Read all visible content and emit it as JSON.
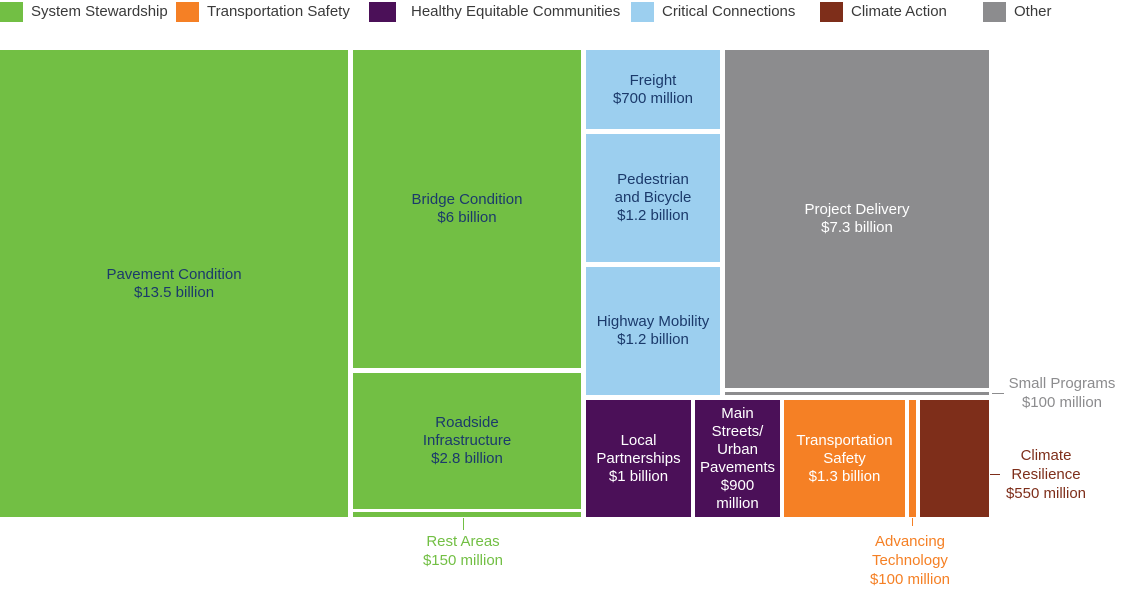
{
  "legend": {
    "items": [
      {
        "label": "System Stewardship",
        "color": "#72bf44"
      },
      {
        "label": "Transportation Safety",
        "color": "#f58025"
      },
      {
        "label": "Healthy Equitable Communities",
        "color": "#4b1058"
      },
      {
        "label": "Critical Connections",
        "color": "#9ccfef"
      },
      {
        "label": "Climate Action",
        "color": "#7e2e1a"
      },
      {
        "label": "Other",
        "color": "#8c8c8e"
      }
    ]
  },
  "chart_data": {
    "type": "treemap",
    "unit": "USD",
    "groups": [
      {
        "name": "System Stewardship",
        "color": "#72bf44",
        "text_color": "#1b3a6b",
        "ext_color": "#72bf44",
        "items": [
          {
            "name": "Pavement Condition",
            "value_label": "$13.5 billion",
            "value": 13500000000
          },
          {
            "name": "Bridge Condition",
            "value_label": "$6 billion",
            "value": 6000000000
          },
          {
            "name": "Roadside Infrastructure",
            "value_label": "$2.8 billion",
            "value": 2800000000
          },
          {
            "name": "Rest Areas",
            "value_label": "$150 million",
            "value": 150000000
          }
        ]
      },
      {
        "name": "Critical Connections",
        "color": "#9ccfef",
        "text_color": "#1b3a6b",
        "ext_color": "#9ccfef",
        "items": [
          {
            "name": "Freight",
            "value_label": "$700 million",
            "value": 700000000
          },
          {
            "name": "Pedestrian and Bicycle",
            "value_label": "$1.2 billion",
            "value": 1200000000
          },
          {
            "name": "Highway Mobility",
            "value_label": "$1.2 billion",
            "value": 1200000000
          }
        ]
      },
      {
        "name": "Other",
        "color": "#8c8c8e",
        "text_color": "#ffffff",
        "ext_color": "#8c8c8e",
        "items": [
          {
            "name": "Project Delivery",
            "value_label": "$7.3 billion",
            "value": 7300000000
          },
          {
            "name": "Small Programs",
            "value_label": "$100 million",
            "value": 100000000
          }
        ]
      },
      {
        "name": "Healthy Equitable Communities",
        "color": "#4b1058",
        "text_color": "#ffffff",
        "ext_color": "#4b1058",
        "items": [
          {
            "name": "Local Partnerships",
            "value_label": "$1 billion",
            "value": 1000000000
          },
          {
            "name": "Main Streets/ Urban Pavements",
            "value_label": "$900 million",
            "value": 900000000
          }
        ]
      },
      {
        "name": "Transportation Safety",
        "color": "#f58025",
        "text_color": "#ffffff",
        "ext_color": "#f58025",
        "items": [
          {
            "name": "Transportation Safety",
            "value_label": "$1.3 billion",
            "value": 1300000000
          },
          {
            "name": "Advancing Technology",
            "value_label": "$100 million",
            "value": 100000000
          }
        ]
      },
      {
        "name": "Climate Action",
        "color": "#7e2e1a",
        "text_color": "#ffffff",
        "ext_color": "#7e2e1a",
        "items": [
          {
            "name": "Climate Resilience",
            "value_label": "$550 million",
            "value": 550000000
          }
        ]
      }
    ]
  },
  "labels": {
    "pavement": "Pavement Condition\n$13.5 billion",
    "bridge": "Bridge Condition\n$6 billion",
    "roadside": "Roadside\nInfrastructure\n$2.8 billion",
    "rest_areas": "Rest Areas\n$150 million",
    "freight": "Freight\n$700 million",
    "ped_bike": "Pedestrian\nand Bicycle\n$1.2 billion",
    "highway": "Highway Mobility\n$1.2 billion",
    "project_delivery": "Project Delivery\n$7.3 billion",
    "small_programs": "Small Programs\n$100 million",
    "local_partnerships": "Local\nPartnerships\n$1 billion",
    "main_streets": "Main\nStreets/\nUrban\nPavements\n$900\nmillion",
    "transport_safety": "Transportation\nSafety\n$1.3 billion",
    "advancing_tech": "Advancing\nTechnology\n$100 million",
    "climate_resilience": "Climate\nResilience\n$550 million"
  }
}
